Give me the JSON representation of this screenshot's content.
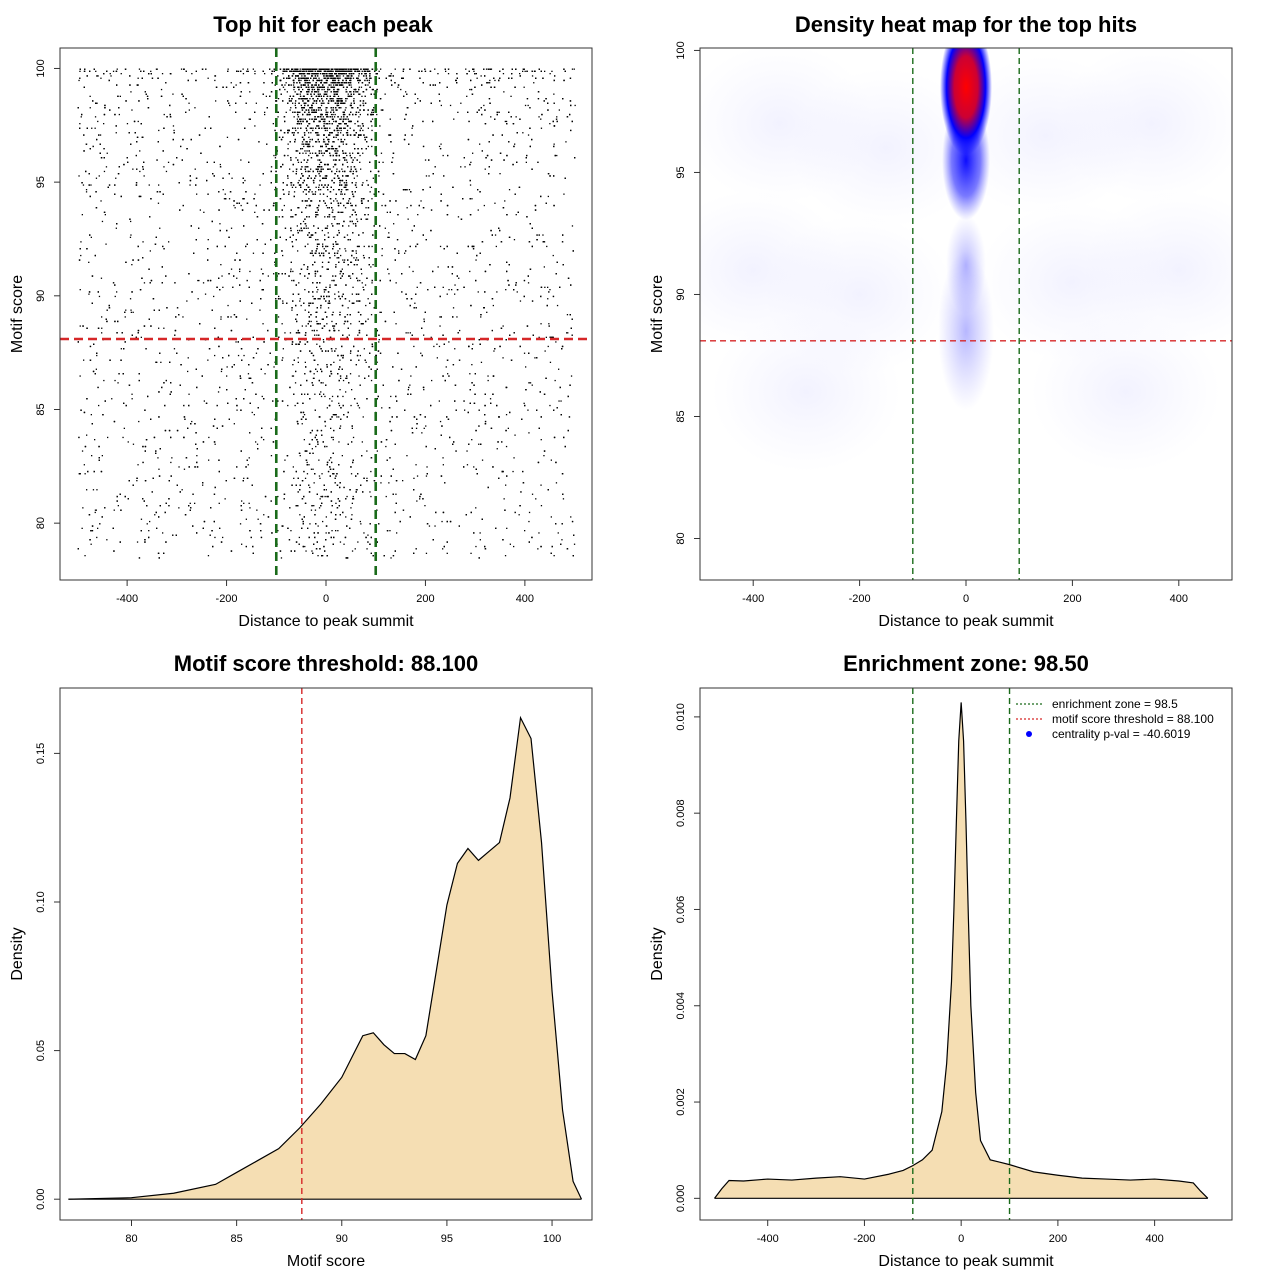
{
  "chart_data": [
    {
      "id": "scatter",
      "type": "scatter",
      "title": "Top hit for each peak",
      "xlabel": "Distance to peak summit",
      "ylabel": "Motif score",
      "xlim": [
        -535,
        535
      ],
      "ylim": [
        77.5,
        100.9
      ],
      "xticks": [
        -400,
        -200,
        0,
        200,
        400
      ],
      "yticks": [
        80,
        85,
        90,
        95,
        100
      ],
      "point_distribution": {
        "x_range": [
          -500,
          500
        ],
        "y_range": [
          78.5,
          100
        ],
        "central_enrichment_halfwidth": 70,
        "approx_points": 9000,
        "color": "#000000"
      },
      "reference_lines": [
        {
          "orientation": "horizontal",
          "value": 88.1,
          "color": "#d62728",
          "style": "dashed"
        },
        {
          "orientation": "vertical",
          "value": -100,
          "color": "#1a6b1a",
          "style": "dashed"
        },
        {
          "orientation": "vertical",
          "value": 100,
          "color": "#1a6b1a",
          "style": "dashed"
        }
      ]
    },
    {
      "id": "heatmap",
      "type": "heatmap",
      "title": "Density heat map for the top hits",
      "xlabel": "Distance to peak summit",
      "ylabel": "Motif score",
      "xlim": [
        -500,
        500
      ],
      "ylim": [
        78.3,
        100.1
      ],
      "xticks": [
        -400,
        -200,
        0,
        200,
        400
      ],
      "yticks": [
        80,
        85,
        90,
        95,
        100
      ],
      "hotspot": {
        "x": 0,
        "y": 98.5
      },
      "colors": {
        "low": "#ffffff",
        "mid": "#0000ff",
        "high": "#ff0000"
      },
      "reference_lines": [
        {
          "orientation": "horizontal",
          "value": 88.1,
          "color": "#d62728",
          "style": "dashed"
        },
        {
          "orientation": "vertical",
          "value": -100,
          "color": "#1a6b1a",
          "style": "dashed"
        },
        {
          "orientation": "vertical",
          "value": 100,
          "color": "#1a6b1a",
          "style": "dashed"
        }
      ]
    },
    {
      "id": "score-density",
      "type": "area",
      "title": "Motif score threshold: 88.100",
      "xlabel": "Motif score",
      "ylabel": "Density",
      "xlim": [
        76.6,
        101.9
      ],
      "ylim": [
        -0.007,
        0.172
      ],
      "xticks": [
        80,
        85,
        90,
        95,
        100
      ],
      "yticks": [
        0.0,
        0.05,
        0.1,
        0.15
      ],
      "ytick_labels": [
        "0.00",
        "0.05",
        "0.10",
        "0.15"
      ],
      "fill": "#f5deb3",
      "x": [
        77.0,
        80.0,
        82.0,
        84.0,
        85.0,
        86.0,
        87.0,
        88.0,
        89.0,
        90.0,
        90.5,
        91.0,
        91.5,
        92.0,
        92.5,
        93.0,
        93.5,
        94.0,
        94.5,
        95.0,
        95.5,
        96.0,
        96.5,
        97.0,
        97.5,
        98.0,
        98.5,
        99.0,
        99.5,
        100.0,
        100.5,
        101.0,
        101.4
      ],
      "y": [
        0.0,
        0.0005,
        0.002,
        0.005,
        0.009,
        0.013,
        0.017,
        0.024,
        0.032,
        0.041,
        0.048,
        0.055,
        0.056,
        0.052,
        0.049,
        0.049,
        0.047,
        0.055,
        0.077,
        0.099,
        0.113,
        0.118,
        0.114,
        0.117,
        0.12,
        0.135,
        0.162,
        0.155,
        0.12,
        0.07,
        0.03,
        0.006,
        0.0
      ],
      "reference_lines": [
        {
          "orientation": "vertical",
          "value": 88.1,
          "color": "#d62728",
          "style": "dashed"
        }
      ]
    },
    {
      "id": "distance-density",
      "type": "area",
      "title": "Enrichment zone: 98.50",
      "xlabel": "Distance to peak summit",
      "ylabel": "Density",
      "xlim": [
        -540,
        560
      ],
      "ylim": [
        -0.00045,
        0.0106
      ],
      "xticks": [
        -400,
        -200,
        0,
        200,
        400
      ],
      "yticks": [
        0.0,
        0.002,
        0.004,
        0.006,
        0.008,
        0.01
      ],
      "ytick_labels": [
        "0.000",
        "0.002",
        "0.004",
        "0.006",
        "0.008",
        "0.010"
      ],
      "fill": "#f5deb3",
      "x": [
        -510,
        -495,
        -480,
        -450,
        -400,
        -350,
        -300,
        -250,
        -200,
        -150,
        -120,
        -100,
        -80,
        -60,
        -40,
        -30,
        -20,
        -15,
        -10,
        -5,
        0,
        5,
        10,
        15,
        20,
        30,
        40,
        60,
        80,
        100,
        150,
        200,
        250,
        300,
        350,
        400,
        450,
        480,
        495,
        510
      ],
      "y": [
        0.0,
        0.0002,
        0.00037,
        0.00036,
        0.0004,
        0.00038,
        0.00042,
        0.00045,
        0.0004,
        0.0005,
        0.00058,
        0.00068,
        0.0008,
        0.001,
        0.0018,
        0.0028,
        0.0045,
        0.006,
        0.0078,
        0.0095,
        0.0103,
        0.0095,
        0.0078,
        0.0058,
        0.004,
        0.0022,
        0.0012,
        0.0008,
        0.00075,
        0.0007,
        0.00055,
        0.00048,
        0.00042,
        0.0004,
        0.00038,
        0.0004,
        0.00036,
        0.00032,
        0.00015,
        0.0
      ],
      "reference_lines": [
        {
          "orientation": "vertical",
          "value": -100,
          "color": "#1a6b1a",
          "style": "dashed"
        },
        {
          "orientation": "vertical",
          "value": 100,
          "color": "#1a6b1a",
          "style": "dashed"
        }
      ],
      "legend": {
        "position": "top-right",
        "entries": [
          {
            "label": "enrichment zone = 98.5",
            "color": "#1a6b1a",
            "symbol": "dotted-line"
          },
          {
            "label": "motif score threshold = 88.100",
            "color": "#d62728",
            "symbol": "dotted-line"
          },
          {
            "label": "centrality p-val = -40.6019",
            "color": "#0000ff",
            "symbol": "dot"
          }
        ]
      }
    }
  ]
}
